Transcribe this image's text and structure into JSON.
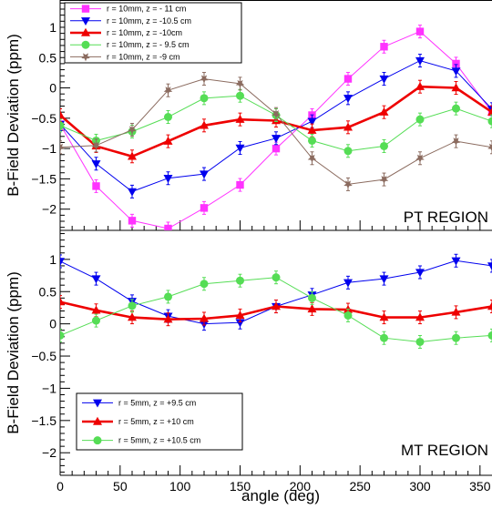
{
  "colors": {
    "magenta": "#ff33ff",
    "blue": "#0000ee",
    "red": "#ee0000",
    "green": "#55dd55",
    "brown": "#8b6b5f"
  },
  "chart_data": [
    {
      "type": "line",
      "region_label": "PT REGION",
      "ylabel": "B-Field Deviation (ppm)",
      "xlabel": "",
      "xlim": [
        0,
        360
      ],
      "ylim": [
        -2.35,
        1.45
      ],
      "x_ticks": [
        0,
        50,
        100,
        150,
        200,
        250,
        300,
        350
      ],
      "x_tick_labels": [
        "",
        "",
        "",
        "",
        "",
        "",
        "",
        ""
      ],
      "y_ticks": [
        -2,
        -1.5,
        -1,
        -0.5,
        0,
        0.5,
        1
      ],
      "y_tick_labels": [
        "−2",
        "−1.5",
        "−1",
        "−0.5",
        "0",
        "0.5",
        "1"
      ],
      "legend_position": "top-left",
      "x": [
        0,
        30,
        60,
        90,
        120,
        150,
        180,
        210,
        240,
        270,
        300,
        330,
        360
      ],
      "series": [
        {
          "name": "r = 10mm, z = - 11 cm",
          "color": "magenta",
          "marker": "square",
          "values": [
            -0.6,
            -1.62,
            -2.19,
            -2.32,
            -1.98,
            -1.6,
            -1.0,
            -0.45,
            0.15,
            0.68,
            0.93,
            0.4,
            -0.4
          ]
        },
        {
          "name": "r = 10mm, z = -10.5 cm",
          "color": "blue",
          "marker": "triangle-down",
          "values": [
            -0.6,
            -1.25,
            -1.71,
            -1.49,
            -1.42,
            -0.99,
            -0.83,
            -0.55,
            -0.17,
            0.15,
            0.45,
            0.28,
            -0.35
          ]
        },
        {
          "name": "r = 10mm, z = -10cm",
          "color": "red",
          "marker": "triangle-up",
          "values": [
            -0.45,
            -0.96,
            -1.13,
            -0.88,
            -0.62,
            -0.52,
            -0.54,
            -0.7,
            -0.65,
            -0.4,
            0.02,
            0.0,
            -0.4
          ]
        },
        {
          "name": "r = 10mm, z = - 9.5 cm",
          "color": "green",
          "marker": "circle",
          "values": [
            -0.62,
            -0.87,
            -0.72,
            -0.48,
            -0.17,
            -0.13,
            -0.45,
            -0.87,
            -1.04,
            -0.96,
            -0.52,
            -0.34,
            -0.55
          ]
        },
        {
          "name": "r = 10mm, z = -9 cm",
          "color": "brown",
          "marker": "star",
          "values": [
            -0.98,
            -0.95,
            -0.69,
            -0.04,
            0.15,
            0.07,
            -0.43,
            -1.16,
            -1.59,
            -1.51,
            -1.16,
            -0.88,
            -0.98
          ]
        }
      ]
    },
    {
      "type": "line",
      "region_label": "MT REGION",
      "ylabel": "B-Field Deviation (ppm)",
      "xlabel": "angle (deg)",
      "xlim": [
        0,
        360
      ],
      "ylim": [
        -2.35,
        1.45
      ],
      "x_ticks": [
        0,
        50,
        100,
        150,
        200,
        250,
        300,
        350
      ],
      "x_tick_labels": [
        "0",
        "50",
        "100",
        "150",
        "200",
        "250",
        "300",
        "350"
      ],
      "y_ticks": [
        -2,
        -1.5,
        -1,
        -0.5,
        0,
        0.5,
        1
      ],
      "y_tick_labels": [
        "−2",
        "−1.5",
        "−1",
        "−0.5",
        "0",
        "0.5",
        "1"
      ],
      "legend_position": "bottom-left",
      "x": [
        0,
        30,
        60,
        90,
        120,
        150,
        180,
        210,
        240,
        270,
        300,
        330,
        360
      ],
      "series": [
        {
          "name": "r = 5mm, z = +9.5 cm",
          "color": "blue",
          "marker": "triangle-down",
          "values": [
            0.97,
            0.7,
            0.35,
            0.12,
            0.0,
            0.02,
            0.27,
            0.45,
            0.64,
            0.7,
            0.8,
            0.98,
            0.9
          ]
        },
        {
          "name": "r = 5mm, z = +10 cm",
          "color": "red",
          "marker": "triangle-up",
          "values": [
            0.34,
            0.21,
            0.1,
            0.07,
            0.08,
            0.13,
            0.27,
            0.23,
            0.22,
            0.1,
            0.1,
            0.18,
            0.27
          ]
        },
        {
          "name": "r = 5mm, z = +10.5 cm",
          "color": "green",
          "marker": "circle",
          "values": [
            -0.18,
            0.05,
            0.28,
            0.42,
            0.62,
            0.67,
            0.72,
            0.4,
            0.13,
            -0.22,
            -0.28,
            -0.22,
            -0.18
          ]
        }
      ]
    }
  ]
}
